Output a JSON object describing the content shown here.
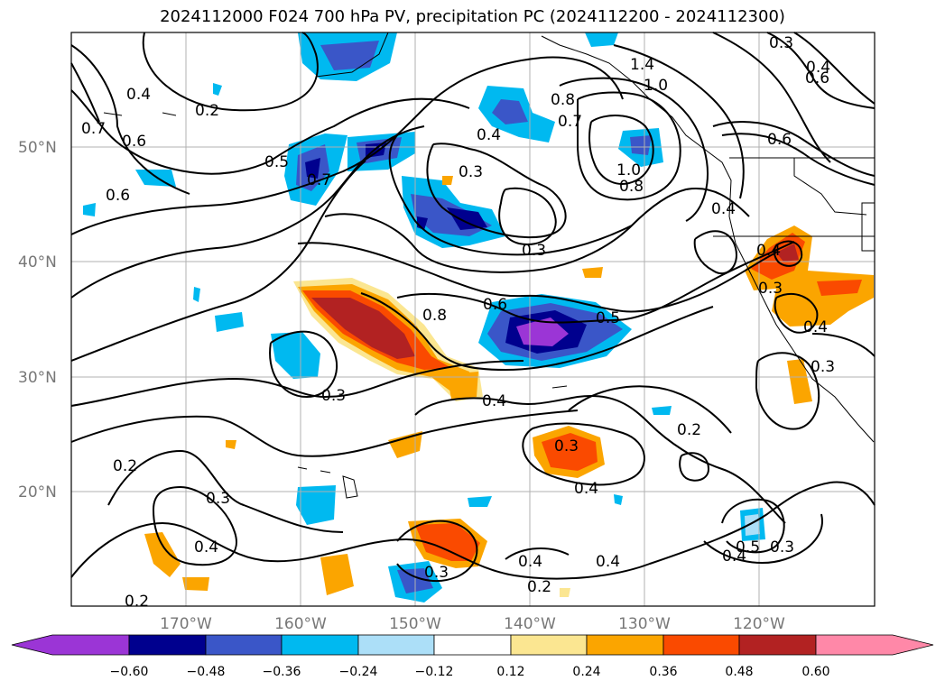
{
  "title": "2024112000 F024 700 hPa PV, precipitation PC (2024112200 - 2024112300)",
  "map": {
    "lat_labels": [
      "50°N",
      "40°N",
      "30°N",
      "20°N"
    ],
    "lon_labels": [
      "170°W",
      "160°W",
      "150°W",
      "140°W",
      "130°W",
      "120°W"
    ],
    "contour_labels": [
      "0.3",
      "0.4",
      "1.4",
      "1.0",
      "0.6",
      "0.4",
      "0.2",
      "0.6",
      "0.7",
      "0.6",
      "0.8",
      "0.7",
      "0.4",
      "0.3",
      "1.0",
      "0.8",
      "0.5",
      "0.7",
      "0.6",
      "0.3",
      "0.4",
      "0.4",
      "0.8",
      "0.6",
      "0.5",
      "0.3",
      "0.4",
      "0.3",
      "0.3",
      "0.2",
      "0.3",
      "0.4",
      "0.2",
      "0.4",
      "0.3",
      "0.4",
      "0.2",
      "0.4",
      "0.5",
      "0.3",
      "0.4",
      "0.2",
      "0.4",
      "0.3"
    ]
  },
  "colorbar": {
    "tick_labels": [
      "−0.60",
      "−0.48",
      "−0.36",
      "−0.24",
      "−0.12",
      "0.12",
      "0.24",
      "0.36",
      "0.48",
      "0.60"
    ],
    "colors": [
      "#9b35d6",
      "#00008e",
      "#3a56c8",
      "#00b9f0",
      "#acdff8",
      "#ffffff",
      "#fbe691",
      "#fba500",
      "#fa4a00",
      "#b22222",
      "#ff88a8"
    ]
  },
  "colors": {
    "neg_060": "#9b35d6",
    "neg_048": "#00008e",
    "neg_036": "#3a56c8",
    "neg_024": "#00b9f0",
    "neg_012": "#acdff8",
    "pos_012": "#fbe691",
    "pos_024": "#fba500",
    "pos_036": "#fa4a00",
    "pos_048": "#b22222",
    "pos_060": "#ff88a8"
  }
}
